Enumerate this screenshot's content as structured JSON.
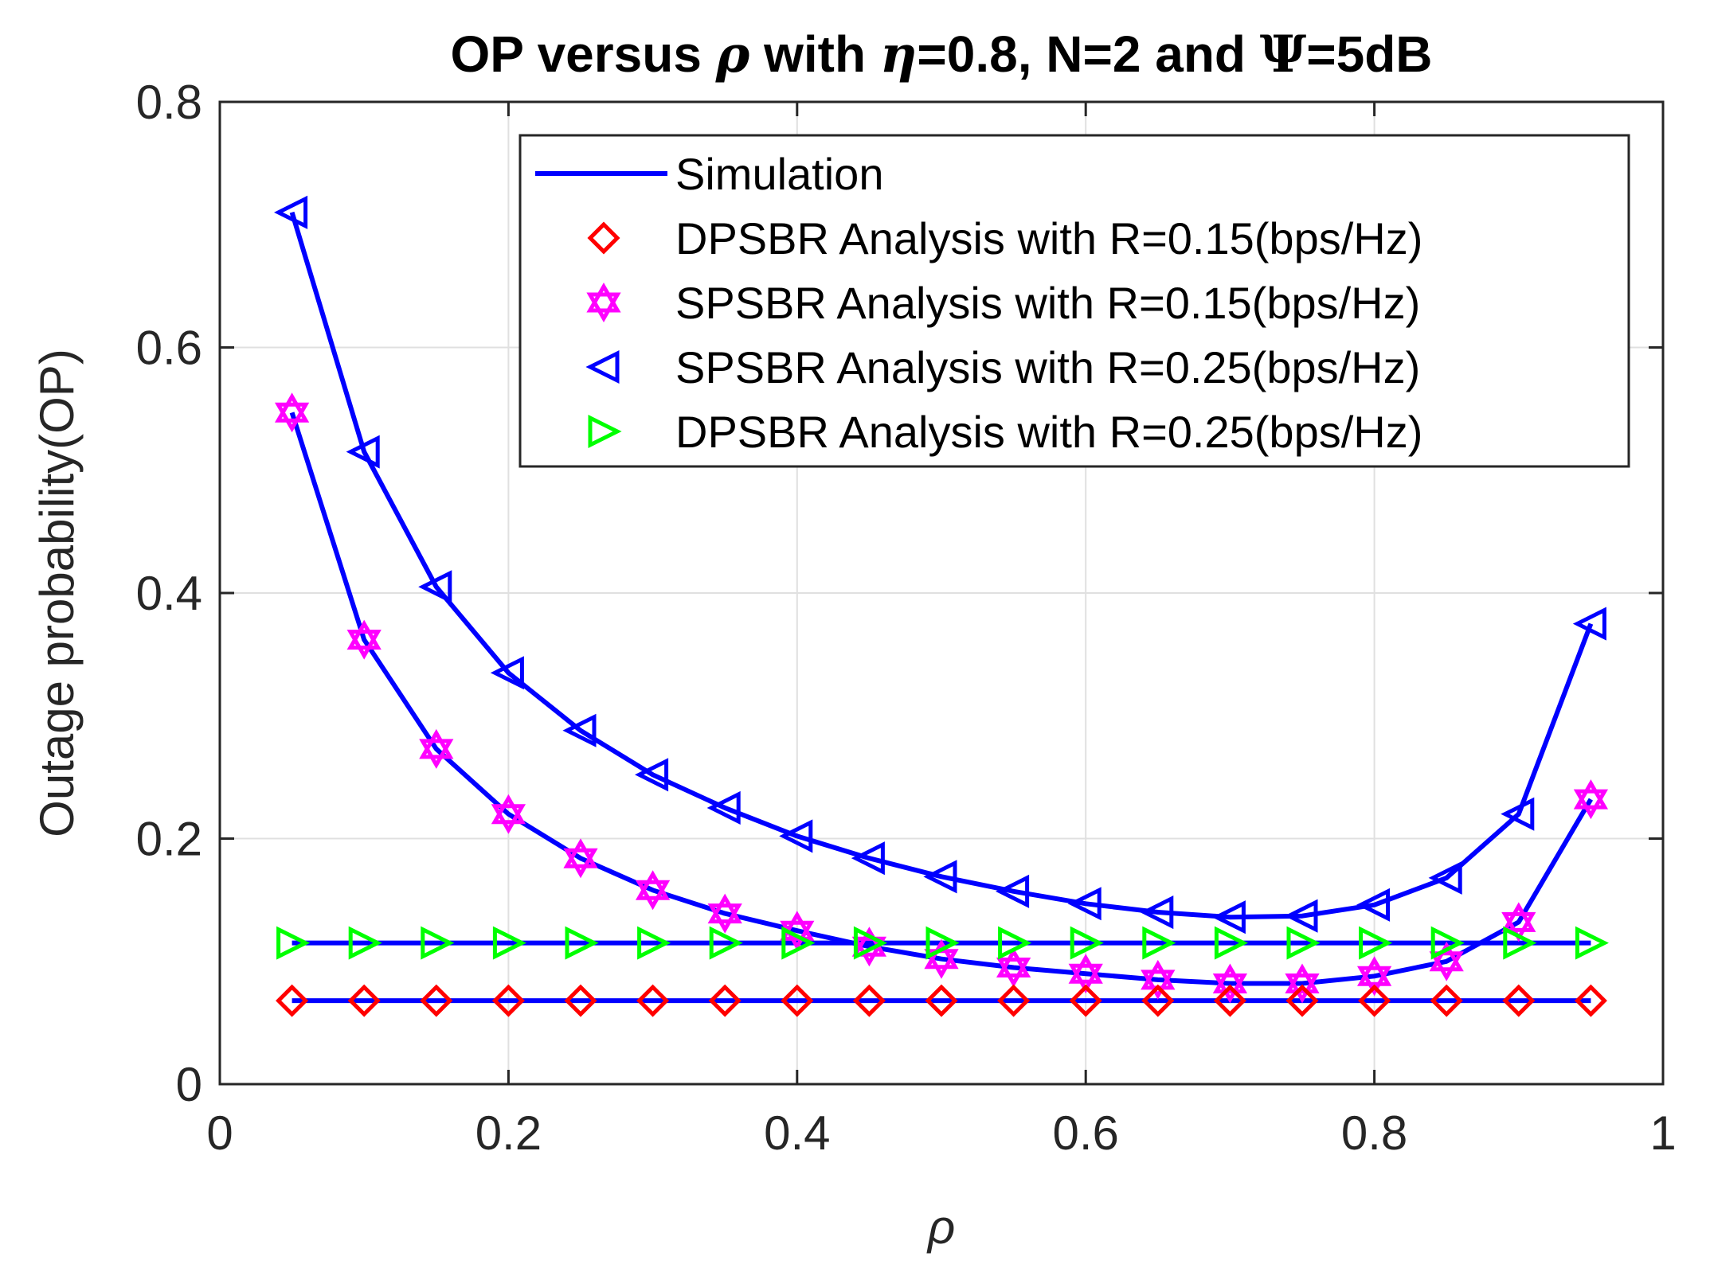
{
  "chart_data": {
    "type": "line",
    "title": {
      "part1": "OP versus ",
      "sym_rho": "ρ",
      "part2": " with ",
      "sym_eta": "η",
      "part3": "=0.8, N=2 and ",
      "sym_psi": "Ψ",
      "part4": "=5dB"
    },
    "xlabel": "ρ",
    "ylabel": "Outage probability(OP)",
    "xlim": [
      0,
      1
    ],
    "ylim": [
      0,
      0.8
    ],
    "xticks": [
      0,
      0.2,
      0.4,
      0.6,
      0.8,
      1
    ],
    "xtick_labels": [
      "0",
      "0.2",
      "0.4",
      "0.6",
      "0.8",
      "1"
    ],
    "yticks": [
      0,
      0.2,
      0.4,
      0.6,
      0.8
    ],
    "ytick_labels": [
      "0",
      "0.2",
      "0.4",
      "0.6",
      "0.8"
    ],
    "grid": true,
    "legend_position": "top-right",
    "x": [
      0.05,
      0.1,
      0.15,
      0.2,
      0.25,
      0.3,
      0.35,
      0.4,
      0.45,
      0.5,
      0.55,
      0.6,
      0.65,
      0.7,
      0.75,
      0.8,
      0.85,
      0.9,
      0.95
    ],
    "series": [
      {
        "key": "sp25",
        "name": "SPSBR Analysis with R=0.25(bps/Hz)",
        "marker": "triangle-left",
        "color": "#0000ff",
        "values": [
          0.71,
          0.515,
          0.405,
          0.335,
          0.288,
          0.252,
          0.225,
          0.202,
          0.184,
          0.169,
          0.157,
          0.147,
          0.14,
          0.136,
          0.137,
          0.146,
          0.168,
          0.22,
          0.375
        ]
      },
      {
        "key": "sp15",
        "name": "SPSBR Analysis with R=0.15(bps/Hz)",
        "marker": "hexagram",
        "color": "#ff00ff",
        "values": [
          0.547,
          0.362,
          0.273,
          0.22,
          0.184,
          0.158,
          0.139,
          0.125,
          0.112,
          0.102,
          0.095,
          0.09,
          0.085,
          0.082,
          0.082,
          0.088,
          0.1,
          0.132,
          0.232
        ]
      },
      {
        "key": "dp25",
        "name": "DPSBR Analysis with R=0.25(bps/Hz)",
        "marker": "triangle-right",
        "color": "#00ff00",
        "values": [
          0.115,
          0.115,
          0.115,
          0.115,
          0.115,
          0.115,
          0.115,
          0.115,
          0.115,
          0.115,
          0.115,
          0.115,
          0.115,
          0.115,
          0.115,
          0.115,
          0.115,
          0.115,
          0.115
        ]
      },
      {
        "key": "dp15",
        "name": "DPSBR Analysis with R=0.15(bps/Hz)",
        "marker": "diamond",
        "color": "#ff0000",
        "values": [
          0.068,
          0.068,
          0.068,
          0.068,
          0.068,
          0.068,
          0.068,
          0.068,
          0.068,
          0.068,
          0.068,
          0.068,
          0.068,
          0.068,
          0.068,
          0.068,
          0.068,
          0.068,
          0.068
        ]
      }
    ],
    "simulation": {
      "name": "Simulation",
      "color": "#0000ff"
    },
    "legend_order": [
      "simulation",
      "dp15",
      "sp15",
      "sp25",
      "dp25"
    ]
  }
}
